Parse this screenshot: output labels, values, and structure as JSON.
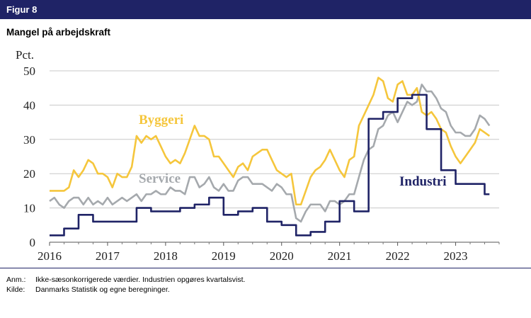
{
  "figure": {
    "label": "Figur 8",
    "title": "Mangel på arbejdskraft"
  },
  "notes": {
    "anm_label": "Anm.:",
    "anm_text": "Ikke-sæsonkorrigerede værdier. Industrien opgøres kvartalsvist.",
    "kilde_label": "Kilde:",
    "kilde_text": "Danmarks Statistik og egne beregninger."
  },
  "colors": {
    "header": "#1f2366",
    "byggeri": "#f5c63c",
    "service": "#a5a9ad",
    "industri": "#1f2366",
    "grid": "#c8c8c8"
  },
  "chart_data": {
    "type": "line",
    "title": "Mangel på arbejdskraft",
    "ylabel": "Pct.",
    "xlabel": "",
    "ylim": [
      0,
      50
    ],
    "yticks": [
      0,
      10,
      20,
      30,
      40,
      50
    ],
    "xlim": [
      2016,
      2023.75
    ],
    "xticks": [
      2016,
      2017,
      2018,
      2019,
      2020,
      2021,
      2022,
      2023
    ],
    "xtick_labels": [
      "2016",
      "2017",
      "2018",
      "2019",
      "2020",
      "2021",
      "2022",
      "2023"
    ],
    "grid": true,
    "legend": "inline labels",
    "series": [
      {
        "name": "Byggeri",
        "color": "#f5c63c",
        "x": [
          2016.0,
          2016.083,
          2016.167,
          2016.25,
          2016.333,
          2016.417,
          2016.5,
          2016.583,
          2016.667,
          2016.75,
          2016.833,
          2016.917,
          2017.0,
          2017.083,
          2017.167,
          2017.25,
          2017.333,
          2017.417,
          2017.5,
          2017.583,
          2017.667,
          2017.75,
          2017.833,
          2017.917,
          2018.0,
          2018.083,
          2018.167,
          2018.25,
          2018.333,
          2018.417,
          2018.5,
          2018.583,
          2018.667,
          2018.75,
          2018.833,
          2018.917,
          2019.0,
          2019.083,
          2019.167,
          2019.25,
          2019.333,
          2019.417,
          2019.5,
          2019.583,
          2019.667,
          2019.75,
          2019.833,
          2019.917,
          2020.0,
          2020.083,
          2020.167,
          2020.25,
          2020.333,
          2020.417,
          2020.5,
          2020.583,
          2020.667,
          2020.75,
          2020.833,
          2020.917,
          2021.0,
          2021.083,
          2021.167,
          2021.25,
          2021.333,
          2021.417,
          2021.5,
          2021.583,
          2021.667,
          2021.75,
          2021.833,
          2021.917,
          2022.0,
          2022.083,
          2022.167,
          2022.25,
          2022.333,
          2022.417,
          2022.5,
          2022.583,
          2022.667,
          2022.75,
          2022.833,
          2022.917,
          2023.0,
          2023.083,
          2023.167,
          2023.25,
          2023.333,
          2023.417,
          2023.5,
          2023.583
        ],
        "values": [
          15,
          15,
          15,
          15,
          16,
          21,
          19,
          21,
          24,
          23,
          20,
          20,
          19,
          16,
          20,
          19,
          19,
          22,
          31,
          29,
          31,
          30,
          31,
          28,
          25,
          23,
          24,
          23,
          26,
          30,
          34,
          31,
          31,
          30,
          25,
          25,
          23,
          21,
          19,
          22,
          23,
          21,
          25,
          26,
          27,
          27,
          24,
          21,
          20,
          19,
          20,
          11,
          11,
          15,
          19,
          21,
          22,
          24,
          27,
          24,
          21,
          19,
          24,
          25,
          34,
          37,
          40,
          43,
          48,
          47,
          42,
          41,
          46,
          47,
          43,
          43,
          45,
          38,
          37,
          38,
          36,
          33,
          32,
          28,
          25,
          23,
          25,
          27,
          29,
          33,
          32,
          31
        ]
      },
      {
        "name": "Service",
        "color": "#a5a9ad",
        "x": [
          2016.0,
          2016.083,
          2016.167,
          2016.25,
          2016.333,
          2016.417,
          2016.5,
          2016.583,
          2016.667,
          2016.75,
          2016.833,
          2016.917,
          2017.0,
          2017.083,
          2017.167,
          2017.25,
          2017.333,
          2017.417,
          2017.5,
          2017.583,
          2017.667,
          2017.75,
          2017.833,
          2017.917,
          2018.0,
          2018.083,
          2018.167,
          2018.25,
          2018.333,
          2018.417,
          2018.5,
          2018.583,
          2018.667,
          2018.75,
          2018.833,
          2018.917,
          2019.0,
          2019.083,
          2019.167,
          2019.25,
          2019.333,
          2019.417,
          2019.5,
          2019.583,
          2019.667,
          2019.75,
          2019.833,
          2019.917,
          2020.0,
          2020.083,
          2020.167,
          2020.25,
          2020.333,
          2020.417,
          2020.5,
          2020.583,
          2020.667,
          2020.75,
          2020.833,
          2020.917,
          2021.0,
          2021.083,
          2021.167,
          2021.25,
          2021.333,
          2021.417,
          2021.5,
          2021.583,
          2021.667,
          2021.75,
          2021.833,
          2021.917,
          2022.0,
          2022.083,
          2022.167,
          2022.25,
          2022.333,
          2022.417,
          2022.5,
          2022.583,
          2022.667,
          2022.75,
          2022.833,
          2022.917,
          2023.0,
          2023.083,
          2023.167,
          2023.25,
          2023.333,
          2023.417,
          2023.5,
          2023.583
        ],
        "values": [
          12,
          13,
          11,
          10,
          12,
          13,
          13,
          11,
          13,
          11,
          12,
          11,
          13,
          11,
          12,
          13,
          12,
          13,
          14,
          12,
          14,
          14,
          15,
          14,
          14,
          16,
          15,
          15,
          14,
          19,
          19,
          16,
          17,
          19,
          16,
          15,
          17,
          15,
          15,
          18,
          19,
          19,
          17,
          17,
          17,
          16,
          15,
          17,
          16,
          14,
          14,
          7,
          6,
          9,
          11,
          11,
          11,
          9,
          12,
          12,
          11,
          12,
          14,
          14,
          19,
          24,
          27,
          28,
          33,
          34,
          37,
          38,
          35,
          38,
          41,
          40,
          41,
          46,
          44,
          44,
          42,
          39,
          38,
          34,
          32,
          32,
          31,
          31,
          33,
          37,
          36,
          34
        ]
      },
      {
        "name": "Industri",
        "color": "#1f2366",
        "x": [
          2016.0,
          2016.25,
          2016.5,
          2016.75,
          2017.0,
          2017.25,
          2017.5,
          2017.75,
          2018.0,
          2018.25,
          2018.5,
          2018.75,
          2019.0,
          2019.25,
          2019.5,
          2019.75,
          2020.0,
          2020.25,
          2020.5,
          2020.75,
          2021.0,
          2021.25,
          2021.5,
          2021.75,
          2022.0,
          2022.25,
          2022.5,
          2022.75,
          2023.0,
          2023.25,
          2023.5
        ],
        "values": [
          2,
          4,
          8,
          6,
          6,
          6,
          10,
          9,
          9,
          10,
          11,
          13,
          8,
          9,
          10,
          6,
          5,
          2,
          3,
          6,
          12,
          9,
          36,
          38,
          42,
          43,
          33,
          21,
          17,
          17,
          14
        ]
      }
    ]
  }
}
